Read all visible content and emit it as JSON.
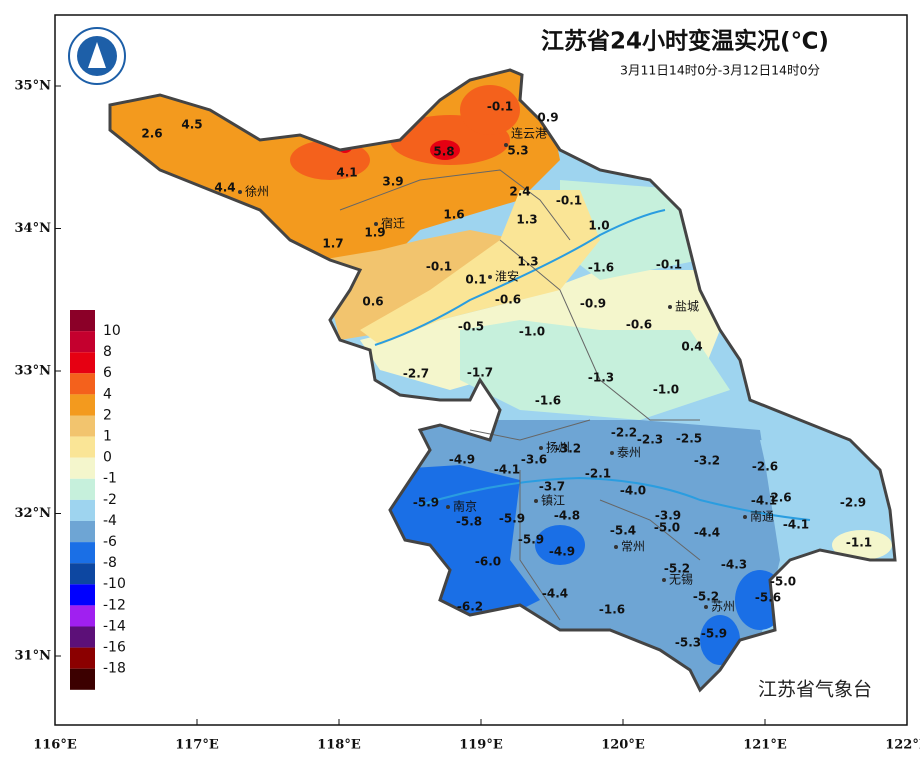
{
  "header": {
    "title": "江苏省24小时变温实况(℃)",
    "subtitle": "3月11日14时0分-3月12日14时0分"
  },
  "footer": "江苏省气象台",
  "axes": {
    "lat": [
      "35°N",
      "34°N",
      "33°N",
      "32°N",
      "31°N"
    ],
    "lon": [
      "116°E",
      "117°E",
      "118°E",
      "119°E",
      "120°E",
      "121°E",
      "122°E"
    ]
  },
  "legend": {
    "labels": [
      10,
      8,
      6,
      4,
      2,
      1,
      0,
      -1,
      -2,
      -4,
      -6,
      -8,
      -10,
      -12,
      -14,
      -16,
      -18
    ],
    "colors": [
      "#8b0028",
      "#c4002e",
      "#e60012",
      "#f4611c",
      "#f39a1e",
      "#f2c46e",
      "#fae596",
      "#f4f6cc",
      "#c6f0dc",
      "#9ed4ef",
      "#6ea5d4",
      "#1a6fe6",
      "#0d47a1",
      "#0000ff",
      "#a020f0",
      "#5c1078",
      "#8b0000",
      "#3c0000"
    ]
  },
  "cities": [
    "徐州",
    "连云港",
    "宿迁",
    "淮安",
    "盐城",
    "扬州",
    "泰州",
    "镇江",
    "南京",
    "南通",
    "常州",
    "无锡",
    "苏州"
  ],
  "stations": [
    "-0.1",
    "0.9",
    "2.6",
    "4.5",
    "5.8",
    "5.3",
    "4.1",
    "3.9",
    "4.4",
    "2.4",
    "-0.1",
    "1.6",
    "1.3",
    "1.9",
    "1.0",
    "1.7",
    "-0.1",
    "1.3",
    "-1.6",
    "-0.1",
    "0.1",
    "-0.6",
    "-0.9",
    "0.6",
    "-0.5",
    "-1.0",
    "-0.6",
    "0.4",
    "-2.7",
    "-1.7",
    "-1.3",
    "-1.0",
    "-1.6",
    "-2.2",
    "-2.3",
    "-2.5",
    "-3.2",
    "-4.9",
    "-3.6",
    "-3.2",
    "-2.6",
    "-4.1",
    "-2.1",
    "-3.7",
    "-4.0",
    "-4.1",
    "2.6",
    "-2.9",
    "-5.9",
    "-4.8",
    "-3.9",
    "-5.8",
    "-5.9",
    "-5.4",
    "-5.0",
    "-4.4",
    "-4.1",
    "-5.9",
    "-4.9",
    "-1.1",
    "-6.0",
    "-5.2",
    "-4.3",
    "-5.0",
    "-4.4",
    "-5.2",
    "-5.6",
    "-6.2",
    "-1.6",
    "-5.9",
    "-5.3"
  ]
}
